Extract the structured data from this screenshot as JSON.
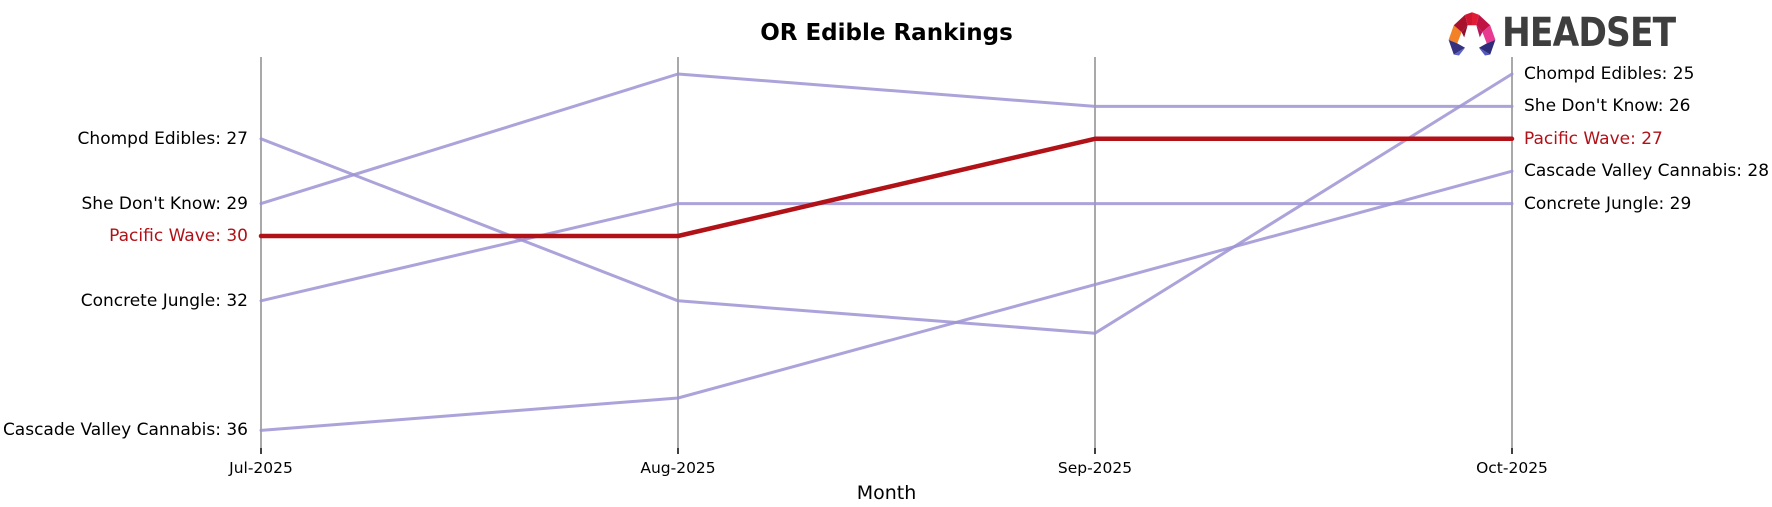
{
  "title": "OR Edible Rankings",
  "logo": {
    "text": "HEADSET"
  },
  "colors": {
    "line_purple": "#9e93d3",
    "line_red": "#b11218",
    "highlight_label_red": "#b11218",
    "axis_gray": "#a9a9a9",
    "tick_black": "#000000",
    "text_black": "#000000",
    "logo_text_gray": "#3e3e3e"
  },
  "chart_data": {
    "type": "line",
    "subtype": "bump-ranking-chart",
    "title": "OR Edible Rankings",
    "xlabel": "Month",
    "ylabel": "",
    "x": [
      "Jul-2025",
      "Aug-2025",
      "Sep-2025",
      "Oct-2025"
    ],
    "y_axis": "rank (lower number = higher position, rank 25 at top, 36 at bottom)",
    "grid": "vertical month gridlines only",
    "legend": "inline start/end labels, format {name}: {rank}",
    "series": [
      {
        "name": "Chompd Edibles",
        "values": [
          27,
          32,
          33,
          25
        ],
        "color": "#9e93d3",
        "highlight": false,
        "start_label": "Chompd Edibles: 27",
        "end_label": "Chompd Edibles: 25"
      },
      {
        "name": "She Don't Know",
        "values": [
          29,
          25,
          26,
          26
        ],
        "color": "#9e93d3",
        "highlight": false,
        "start_label": "She Don't Know: 29",
        "end_label": "She Don't Know: 26"
      },
      {
        "name": "Pacific Wave",
        "values": [
          30,
          30,
          27,
          27
        ],
        "color": "#b11218",
        "highlight": true,
        "start_label": "Pacific Wave: 30",
        "end_label": "Pacific Wave: 27"
      },
      {
        "name": "Concrete Jungle",
        "values": [
          32,
          29,
          29,
          29
        ],
        "color": "#9e93d3",
        "highlight": false,
        "start_label": "Concrete Jungle: 32",
        "end_label": "Concrete Jungle: 29"
      },
      {
        "name": "Cascade Valley Cannabis",
        "values": [
          36,
          35,
          31.5,
          28
        ],
        "color": "#9e93d3",
        "highlight": false,
        "start_label": "Cascade Valley Cannabis: 36",
        "end_label": "Cascade Valley Cannabis: 28"
      }
    ]
  }
}
